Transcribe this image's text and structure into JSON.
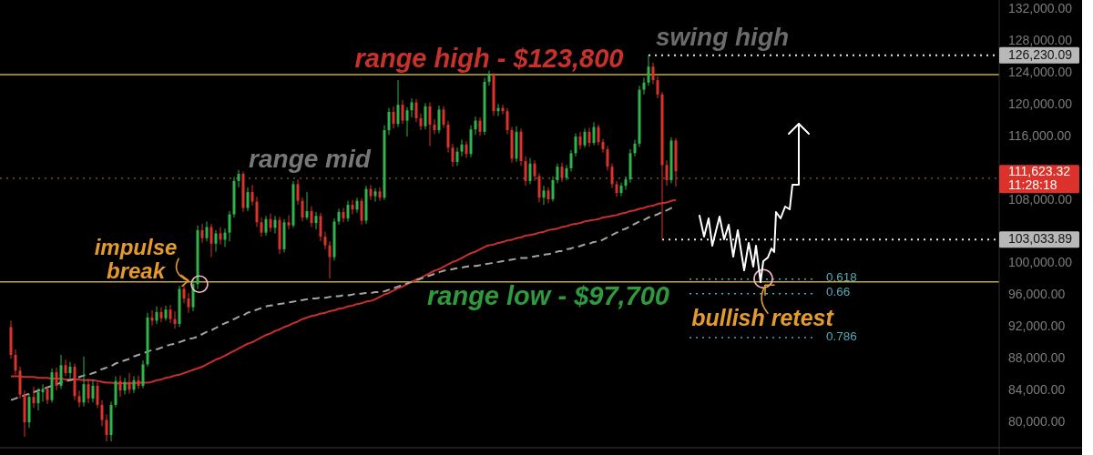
{
  "chart_data": {
    "type": "candlestick",
    "categories": [
      null,
      null,
      null,
      null,
      null,
      null,
      null,
      null,
      null,
      null,
      null,
      null,
      null,
      null,
      null,
      null,
      null,
      null,
      null,
      null,
      null,
      null,
      null,
      null,
      null,
      null,
      null,
      null,
      null,
      null,
      null,
      null,
      null,
      null,
      null,
      null,
      null,
      null,
      null,
      null,
      null,
      null,
      null,
      null,
      null,
      null,
      null,
      null,
      null,
      null,
      null,
      null,
      null,
      null,
      null,
      null,
      null,
      null,
      null,
      null,
      null,
      null,
      null,
      null,
      null,
      null,
      null,
      null,
      null,
      null,
      null,
      null,
      null,
      null,
      null,
      null,
      null,
      null,
      null,
      null,
      null,
      null,
      null,
      null,
      null,
      null,
      null,
      null,
      null,
      null,
      null,
      null,
      null,
      null,
      null,
      null,
      null,
      null,
      null,
      null,
      null,
      null,
      null,
      null,
      null,
      null,
      null,
      null,
      null,
      null,
      null,
      null,
      null,
      null,
      null,
      null,
      null,
      null,
      null,
      null,
      null,
      null,
      null,
      null,
      null,
      null,
      null,
      null,
      null,
      null,
      null,
      null,
      null,
      null,
      null,
      null,
      null,
      null,
      null,
      null,
      null,
      null,
      null,
      null,
      null,
      null,
      null,
      null,
      null,
      null,
      null,
      null,
      null,
      null,
      null,
      null,
      null,
      null,
      null,
      null,
      null,
      null,
      null,
      null,
      null,
      null,
      null,
      null,
      null,
      null,
      null,
      null,
      null,
      null,
      null,
      null,
      null,
      null,
      null,
      null,
      null,
      null,
      null,
      null,
      null,
      null,
      null,
      null,
      null,
      null,
      null,
      null,
      null,
      null,
      null,
      null,
      null,
      null,
      null,
      null,
      null,
      null,
      null,
      null,
      null,
      null,
      null,
      null,
      null,
      null,
      null,
      null,
      null,
      null,
      null,
      null,
      null,
      null
    ],
    "ohlc": [
      [
        92000,
        92800,
        88000,
        88500
      ],
      [
        88500,
        89200,
        86000,
        86500
      ],
      [
        86500,
        87000,
        83000,
        83500
      ],
      [
        83500,
        84000,
        78200,
        80000
      ],
      [
        80000,
        83600,
        79300,
        83200
      ],
      [
        83200,
        84500,
        81800,
        82400
      ],
      [
        82400,
        84300,
        81500,
        83800
      ],
      [
        83800,
        84800,
        82600,
        84200
      ],
      [
        84200,
        84600,
        82300,
        82800
      ],
      [
        82800,
        86800,
        82500,
        86300
      ],
      [
        86300,
        86900,
        84000,
        84600
      ],
      [
        84600,
        88500,
        84200,
        87200
      ],
      [
        87200,
        87900,
        85800,
        86200
      ],
      [
        86200,
        87600,
        85500,
        87000
      ],
      [
        87000,
        87400,
        82800,
        83300
      ],
      [
        83300,
        84000,
        81900,
        82500
      ],
      [
        82500,
        88300,
        82000,
        84800
      ],
      [
        84800,
        85500,
        82400,
        83000
      ],
      [
        83000,
        85400,
        82500,
        84600
      ],
      [
        84600,
        85000,
        81800,
        82200
      ],
      [
        82200,
        82800,
        79500,
        80300
      ],
      [
        80300,
        81000,
        77600,
        78400
      ],
      [
        78400,
        82600,
        77600,
        82200
      ],
      [
        82200,
        85800,
        81900,
        85200
      ],
      [
        85200,
        85900,
        83200,
        84000
      ],
      [
        84000,
        85600,
        83500,
        85100
      ],
      [
        85100,
        86200,
        83600,
        84100
      ],
      [
        84100,
        85800,
        83700,
        85300
      ],
      [
        85300,
        85900,
        84200,
        84600
      ],
      [
        84600,
        87800,
        84300,
        87300
      ],
      [
        87300,
        93800,
        87000,
        93200
      ],
      [
        93200,
        94100,
        92200,
        92800
      ],
      [
        92800,
        94600,
        92400,
        93900
      ],
      [
        93900,
        94500,
        92600,
        93100
      ],
      [
        93100,
        94700,
        92800,
        94200
      ],
      [
        94200,
        94800,
        92500,
        93000
      ],
      [
        93000,
        94000,
        91800,
        92400
      ],
      [
        92400,
        97200,
        92000,
        96800
      ],
      [
        96800,
        97400,
        95000,
        95600
      ],
      [
        95600,
        96300,
        93800,
        94500
      ],
      [
        94500,
        97900,
        94000,
        97400
      ],
      [
        97400,
        104800,
        96800,
        104200
      ],
      [
        104200,
        105000,
        102600,
        103200
      ],
      [
        103200,
        105300,
        102800,
        104600
      ],
      [
        104600,
        105000,
        100800,
        102500
      ],
      [
        102500,
        104200,
        101500,
        103800
      ],
      [
        103800,
        104600,
        102400,
        103000
      ],
      [
        103000,
        104400,
        102100,
        103900
      ],
      [
        103900,
        106600,
        102800,
        106200
      ],
      [
        106200,
        110900,
        105800,
        110400
      ],
      [
        110400,
        111800,
        109600,
        111300
      ],
      [
        111300,
        111600,
        106500,
        107000
      ],
      [
        107000,
        109600,
        106600,
        109000
      ],
      [
        109000,
        109900,
        107300,
        107800
      ],
      [
        107800,
        108400,
        104600,
        105200
      ],
      [
        105200,
        105800,
        103400,
        103900
      ],
      [
        103900,
        106000,
        103500,
        105600
      ],
      [
        105600,
        106300,
        104000,
        104500
      ],
      [
        104500,
        106000,
        103800,
        105500
      ],
      [
        105500,
        105900,
        101200,
        101800
      ],
      [
        101800,
        105600,
        101400,
        105200
      ],
      [
        105200,
        106100,
        104300,
        104800
      ],
      [
        104800,
        110400,
        104500,
        110000
      ],
      [
        110000,
        110600,
        107400,
        107900
      ],
      [
        107900,
        108300,
        105300,
        105800
      ],
      [
        105800,
        109000,
        105500,
        106600
      ],
      [
        106600,
        107200,
        104600,
        105100
      ],
      [
        105100,
        106500,
        104300,
        106000
      ],
      [
        106000,
        106400,
        102800,
        103400
      ],
      [
        103400,
        104000,
        101800,
        102300
      ],
      [
        102300,
        102800,
        98100,
        100800
      ],
      [
        100800,
        105700,
        100400,
        105300
      ],
      [
        105300,
        106900,
        104900,
        106500
      ],
      [
        106500,
        107000,
        105200,
        105700
      ],
      [
        105700,
        107900,
        105300,
        107400
      ],
      [
        107400,
        108000,
        106200,
        106800
      ],
      [
        106800,
        108300,
        106400,
        107900
      ],
      [
        107900,
        108200,
        104900,
        105400
      ],
      [
        105400,
        109800,
        105000,
        109400
      ],
      [
        109400,
        109900,
        108000,
        108500
      ],
      [
        108500,
        109500,
        107800,
        109100
      ],
      [
        109100,
        109600,
        107900,
        108300
      ],
      [
        108300,
        117400,
        108000,
        116800
      ],
      [
        116800,
        119600,
        116200,
        119100
      ],
      [
        119100,
        119800,
        117000,
        117600
      ],
      [
        117600,
        123100,
        117200,
        120000
      ],
      [
        120000,
        120600,
        117600,
        118000
      ],
      [
        118000,
        119700,
        116000,
        119300
      ],
      [
        119300,
        120800,
        118400,
        120300
      ],
      [
        120300,
        120700,
        117800,
        118300
      ],
      [
        118300,
        118900,
        116800,
        117300
      ],
      [
        117300,
        120200,
        116900,
        119800
      ],
      [
        119800,
        120300,
        114800,
        117500
      ],
      [
        117500,
        118200,
        116300,
        116800
      ],
      [
        116800,
        119900,
        116400,
        119400
      ],
      [
        119400,
        119800,
        117100,
        117500
      ],
      [
        117500,
        118000,
        114000,
        114600
      ],
      [
        114600,
        115100,
        112200,
        112800
      ],
      [
        112800,
        114600,
        112300,
        114100
      ],
      [
        114100,
        115600,
        113500,
        115000
      ],
      [
        115000,
        115400,
        113300,
        113800
      ],
      [
        113800,
        117400,
        113400,
        116900
      ],
      [
        116900,
        118500,
        116200,
        118000
      ],
      [
        118000,
        118400,
        116100,
        116600
      ],
      [
        116600,
        123400,
        116200,
        122900
      ],
      [
        122900,
        124300,
        122400,
        123800
      ],
      [
        123800,
        124000,
        118600,
        119200
      ],
      [
        119200,
        120100,
        118600,
        119600
      ],
      [
        119600,
        120000,
        118800,
        119200
      ],
      [
        119200,
        119600,
        116300,
        116800
      ],
      [
        116800,
        117200,
        112700,
        113200
      ],
      [
        113200,
        117300,
        112800,
        116600
      ],
      [
        116600,
        117000,
        112300,
        112900
      ],
      [
        112900,
        113500,
        109800,
        110400
      ],
      [
        110400,
        113300,
        110000,
        112600
      ],
      [
        112600,
        113000,
        110400,
        111000
      ],
      [
        111000,
        111400,
        107700,
        108300
      ],
      [
        108300,
        109800,
        107400,
        109200
      ],
      [
        109200,
        109600,
        107600,
        108100
      ],
      [
        108100,
        111000,
        107800,
        110500
      ],
      [
        110500,
        112600,
        110100,
        112200
      ],
      [
        112200,
        112700,
        110300,
        110800
      ],
      [
        110800,
        112400,
        110500,
        112000
      ],
      [
        112000,
        114300,
        111600,
        113900
      ],
      [
        113900,
        116400,
        113500,
        116000
      ],
      [
        116000,
        116600,
        114400,
        114900
      ],
      [
        114900,
        117000,
        114600,
        116600
      ],
      [
        116600,
        117100,
        114700,
        115200
      ],
      [
        115200,
        117800,
        114900,
        117200
      ],
      [
        117200,
        117500,
        114900,
        115300
      ],
      [
        115300,
        115700,
        114000,
        114400
      ],
      [
        114400,
        114800,
        111700,
        112200
      ],
      [
        112200,
        112600,
        109500,
        110000
      ],
      [
        110000,
        110400,
        108400,
        108900
      ],
      [
        108900,
        110200,
        108500,
        109800
      ],
      [
        109800,
        111000,
        109300,
        110600
      ],
      [
        110600,
        114400,
        110200,
        113900
      ],
      [
        113900,
        115600,
        113500,
        115100
      ],
      [
        115100,
        122400,
        114700,
        121900
      ],
      [
        121900,
        123400,
        121300,
        122800
      ],
      [
        122800,
        126230.09,
        122400,
        124800
      ],
      [
        124800,
        125300,
        122600,
        123100
      ],
      [
        123100,
        123600,
        120800,
        121300
      ],
      [
        121300,
        121600,
        103033.89,
        112400
      ],
      [
        112400,
        113000,
        109800,
        110500
      ],
      [
        110500,
        115900,
        110100,
        115500
      ],
      [
        115500,
        115800,
        109700,
        111623.32
      ],
      null,
      null,
      null,
      null,
      null,
      null,
      null,
      null,
      null,
      null,
      null,
      null,
      null,
      null,
      null,
      null,
      null,
      null,
      null,
      null,
      null,
      null,
      null,
      null,
      null,
      null,
      null,
      null,
      null,
      null,
      null,
      null,
      null,
      null,
      null,
      null,
      null,
      null,
      null,
      null,
      null,
      null,
      null,
      null,
      null,
      null,
      null,
      null,
      null,
      null,
      null,
      null,
      null,
      null,
      null,
      null,
      null,
      null,
      null,
      null,
      null,
      null,
      null,
      null,
      null,
      null,
      null,
      null,
      null,
      null,
      null
    ],
    "series": [
      {
        "type": "line",
        "color": "#c8302b",
        "values": [
          85800,
          85800,
          85800,
          85700,
          85700,
          85700,
          85600,
          85600,
          85600,
          85500,
          85500,
          85500,
          85400,
          85400,
          85400,
          85400,
          85300,
          85300,
          85300,
          85200,
          85100,
          85000,
          85000,
          84900,
          84900,
          84900,
          84900,
          84900,
          85000,
          85000,
          85000,
          85100,
          85300,
          85400,
          85600,
          85700,
          85900,
          86000,
          86200,
          86400,
          86600,
          86800,
          87000,
          87300,
          87600,
          87900,
          88100,
          88400,
          88700,
          89000,
          89300,
          89600,
          89900,
          90100,
          90400,
          90700,
          91000,
          91200,
          91500,
          91700,
          92000,
          92200,
          92500,
          92700,
          93000,
          93200,
          93400,
          93500,
          93700,
          93800,
          94000,
          94100,
          94300,
          94400,
          94600,
          94700,
          94900,
          95000,
          95200,
          95300,
          95500,
          95800,
          96100,
          96300,
          96600,
          96900,
          97100,
          97400,
          97700,
          98000,
          98200,
          98500,
          98800,
          99100,
          99300,
          99600,
          99900,
          100200,
          100400,
          100700,
          101000,
          101300,
          101500,
          101800,
          102100,
          102300,
          102400,
          102600,
          102700,
          102900,
          103000,
          103200,
          103300,
          103500,
          103600,
          103700,
          103900,
          104000,
          104200,
          104300,
          104400,
          104600,
          104700,
          104900,
          105000,
          105100,
          105300,
          105400,
          105500,
          105600,
          105800,
          105900,
          106000,
          106100,
          106300,
          106400,
          106600,
          106700,
          106900,
          107000,
          107200,
          107300,
          107500,
          107600,
          107700,
          107900,
          108000,
          null,
          null,
          null,
          null,
          null,
          null,
          null,
          null,
          null,
          null,
          null,
          null,
          null,
          null,
          null,
          null,
          null,
          null,
          null,
          null,
          null,
          null,
          null,
          null,
          null,
          null,
          null,
          null,
          null,
          null,
          null,
          null,
          null,
          null,
          null,
          null,
          null,
          null,
          null,
          null,
          null,
          null,
          null,
          null,
          null,
          null,
          null,
          null,
          null,
          null,
          null,
          null,
          null,
          null,
          null,
          null,
          null,
          null,
          null,
          null,
          null,
          null,
          null,
          null,
          null,
          null,
          null,
          null,
          null,
          null,
          null
        ]
      },
      {
        "type": "line",
        "color": "#a3a3a3",
        "line_style": "dashed",
        "values": [
          82800,
          83000,
          83200,
          83400,
          83600,
          83800,
          84000,
          84200,
          84400,
          84600,
          84800,
          85000,
          85200,
          85300,
          85500,
          85700,
          85900,
          86000,
          86200,
          86400,
          86700,
          86900,
          87100,
          87400,
          87600,
          87800,
          88000,
          88300,
          88500,
          88700,
          88900,
          89100,
          89200,
          89400,
          89600,
          89800,
          89900,
          90100,
          90300,
          90500,
          90600,
          90800,
          91100,
          91400,
          91600,
          91900,
          92200,
          92500,
          92700,
          93000,
          93300,
          93500,
          93800,
          94000,
          94200,
          94400,
          94600,
          94700,
          94800,
          94900,
          95000,
          95100,
          95200,
          95300,
          95400,
          95500,
          95600,
          95600,
          95700,
          95700,
          95800,
          95900,
          95900,
          96000,
          96000,
          96100,
          96200,
          96200,
          96300,
          96300,
          96400,
          96400,
          96500,
          96700,
          96900,
          97100,
          97300,
          97500,
          97700,
          97900,
          98100,
          98300,
          98500,
          98700,
          98900,
          99100,
          99200,
          99300,
          99400,
          99500,
          99600,
          99700,
          99700,
          99800,
          99900,
          100000,
          100100,
          100200,
          100300,
          100400,
          100500,
          100600,
          100700,
          100700,
          100800,
          100900,
          101000,
          101100,
          101200,
          101300,
          101500,
          101600,
          101800,
          101900,
          102100,
          102200,
          102400,
          102500,
          102700,
          102800,
          103000,
          103300,
          103600,
          103900,
          104200,
          104400,
          104700,
          105000,
          105300,
          105500,
          105800,
          106000,
          106200,
          106500,
          106700,
          107000,
          107200,
          null,
          null,
          null,
          null,
          null,
          null,
          null,
          null,
          null,
          null,
          null,
          null,
          null,
          null,
          null,
          null,
          null,
          null,
          null,
          null,
          null,
          null,
          null,
          null,
          null,
          null,
          null,
          null,
          null,
          null,
          null,
          null,
          null,
          null,
          null,
          null,
          null,
          null,
          null,
          null,
          null,
          null,
          null,
          null,
          null,
          null,
          null,
          null,
          null,
          null,
          null,
          null,
          null,
          null,
          null,
          null,
          null,
          null,
          null,
          null,
          null,
          null,
          null,
          null,
          null,
          null,
          null,
          null,
          null,
          null,
          null
        ]
      }
    ],
    "ylim": [
      76800,
      133200
    ],
    "yticks": [
      {
        "value": 80000,
        "label": "80,000.00"
      },
      {
        "value": 84000,
        "label": "84,000.00"
      },
      {
        "value": 88000,
        "label": "88,000.00"
      },
      {
        "value": 92000,
        "label": "92,000.00"
      },
      {
        "value": 96000,
        "label": "96,000.00"
      },
      {
        "value": 100000,
        "label": "100,000.00"
      },
      {
        "value": 108000,
        "label": "108,000.00"
      },
      {
        "value": 116000,
        "label": "116,000.00"
      },
      {
        "value": 120000,
        "label": "120,000.00"
      },
      {
        "value": 124000,
        "label": "124,000.00"
      },
      {
        "value": 128000,
        "label": "128,000.00"
      },
      {
        "value": 132000,
        "label": "132,000.00"
      }
    ],
    "tick_labels": "y",
    "ref_lines": [
      {
        "axis": "y",
        "value": 126230.09,
        "label": "126,230.09",
        "color": "#e6e6e6",
        "line_style": "dotted"
      },
      {
        "axis": "y",
        "value": 123800,
        "label": "range high - $123,800",
        "color": "#c2ad3c"
      },
      {
        "axis": "y",
        "value": 110750,
        "label": "range mid",
        "color": "#8c6a2c",
        "line_style": "dotted"
      },
      {
        "axis": "y",
        "value": 103033.89,
        "label": "103,033.89",
        "color": "#e6e6e6",
        "line_style": "dotted"
      },
      {
        "axis": "y",
        "value": 97700,
        "label": "range low - $97,700",
        "color": "#c2ad3c"
      },
      {
        "axis": "y",
        "value": 98040,
        "color": "#4fa9b8",
        "line_style": "dotted"
      },
      {
        "axis": "y",
        "value": 96200,
        "color": "#4fa9b8",
        "line_style": "dotted"
      },
      {
        "axis": "y",
        "value": 90670,
        "color": "#4fa9b8",
        "line_style": "dotted"
      }
    ],
    "annotations": [
      {
        "text": "impulse break",
        "y": 97400
      },
      {
        "text": "bullish retest",
        "y": 98100
      },
      {
        "text": "swing high",
        "y": 126230.09
      },
      "111,623.32",
      "11:28:18",
      "0.618",
      "0.66",
      "0.786"
    ]
  }
}
